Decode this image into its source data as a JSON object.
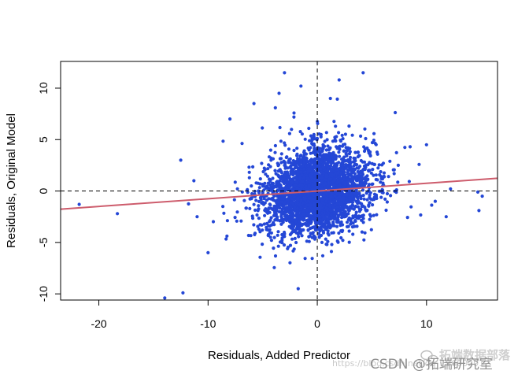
{
  "chart_data": {
    "type": "scatter",
    "title": "",
    "xlabel": "Residuals, Added Predictor",
    "ylabel": "Residuals, Original Model",
    "xlim": [
      -23.5,
      16.5
    ],
    "ylim": [
      -10.6,
      12.6
    ],
    "x_ticks": [
      -20,
      -10,
      0,
      10
    ],
    "y_ticks": [
      -10,
      -5,
      0,
      5,
      10
    ],
    "x_tick_labels": [
      "-20",
      "-10",
      "0",
      "10"
    ],
    "y_tick_labels": [
      "-10",
      "-5",
      "0",
      "5",
      "10"
    ],
    "grid": false,
    "reference_lines": [
      {
        "orientation": "horizontal",
        "value": 0,
        "style": "dashed"
      },
      {
        "orientation": "vertical",
        "value": 0,
        "style": "dashed"
      }
    ],
    "fit_line": {
      "intercept": 0.0,
      "slope": 0.075,
      "color": "#cd5c6c"
    },
    "point_color": "#2447d6",
    "cloud": {
      "n": 3200,
      "x_sd": 2.3,
      "y_sd": 2.0,
      "rho": 0.15
    },
    "notable_points": [
      {
        "x": -21.8,
        "y": -1.3
      },
      {
        "x": -18.3,
        "y": -2.2
      },
      {
        "x": -12.5,
        "y": 3.0
      },
      {
        "x": -12.3,
        "y": -9.9
      },
      {
        "x": -11.3,
        "y": 1.0
      },
      {
        "x": -11.0,
        "y": -2.5
      },
      {
        "x": -10.0,
        "y": -6.0
      },
      {
        "x": -8.0,
        "y": 7.0
      },
      {
        "x": -5.8,
        "y": 8.5
      },
      {
        "x": -3.5,
        "y": 9.5
      },
      {
        "x": -3.0,
        "y": 11.5
      },
      {
        "x": -1.5,
        "y": 10.2
      },
      {
        "x": 0.5,
        "y": -6.3
      },
      {
        "x": 1.2,
        "y": 9.0
      },
      {
        "x": 2.0,
        "y": 10.8
      },
      {
        "x": 4.2,
        "y": 11.5
      },
      {
        "x": 8.5,
        "y": 4.3
      },
      {
        "x": 10.0,
        "y": 4.5
      },
      {
        "x": 10.8,
        "y": -1.0
      },
      {
        "x": 11.8,
        "y": -2.5
      },
      {
        "x": 12.2,
        "y": 0.2
      },
      {
        "x": 14.7,
        "y": -0.1
      },
      {
        "x": 14.8,
        "y": -1.9
      },
      {
        "x": 15.1,
        "y": -0.5
      }
    ]
  },
  "watermark": {
    "url_text": "https://blog.csdn.net/qq_19600291",
    "csdn_text": "CSDN @拓端研究室",
    "wechat_text": "拓端数据部落"
  }
}
